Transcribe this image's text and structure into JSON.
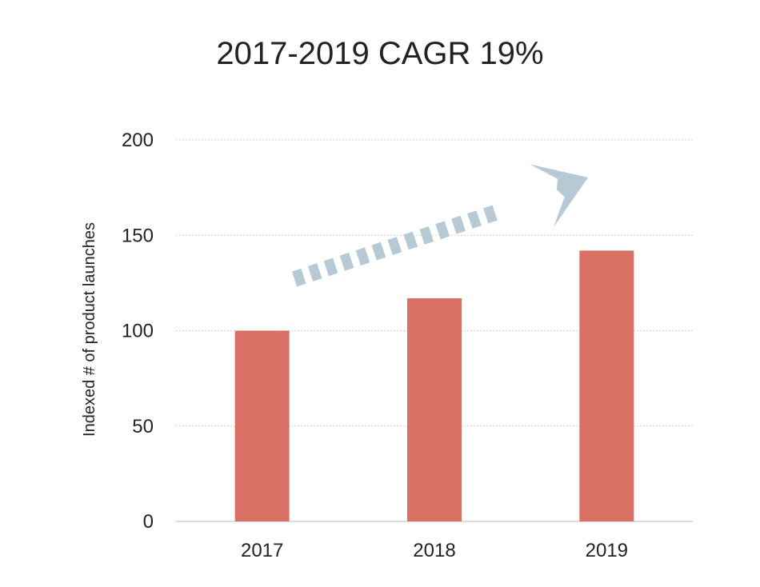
{
  "chart_data": {
    "type": "bar",
    "title": "2017-2019 CAGR 19%",
    "ylabel": "Indexed # of product launches",
    "xlabel": "",
    "categories": [
      "2017",
      "2018",
      "2019"
    ],
    "values": [
      100,
      117,
      142
    ],
    "ylim": [
      0,
      200
    ],
    "yticks": [
      0,
      50,
      100,
      150,
      200
    ],
    "grid": true,
    "bar_color": "#d97066",
    "annotation": {
      "type": "dashed-trend-arrow",
      "color": "#b8c9d6"
    }
  }
}
